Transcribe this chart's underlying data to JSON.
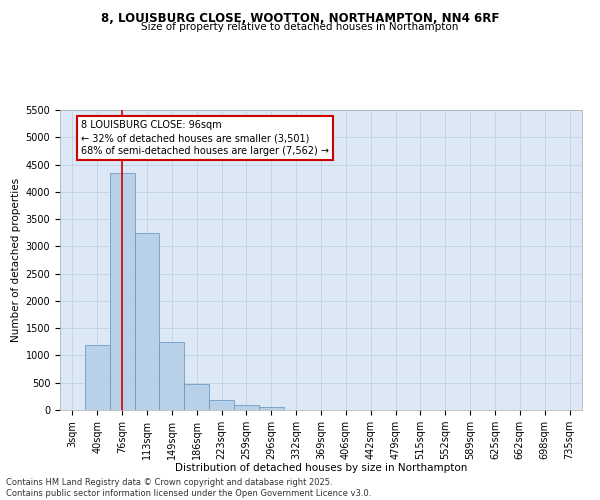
{
  "title_line1": "8, LOUISBURG CLOSE, WOOTTON, NORTHAMPTON, NN4 6RF",
  "title_line2": "Size of property relative to detached houses in Northampton",
  "xlabel": "Distribution of detached houses by size in Northampton",
  "ylabel": "Number of detached properties",
  "footer_line1": "Contains HM Land Registry data © Crown copyright and database right 2025.",
  "footer_line2": "Contains public sector information licensed under the Open Government Licence v3.0.",
  "bar_labels": [
    "3sqm",
    "40sqm",
    "76sqm",
    "113sqm",
    "149sqm",
    "186sqm",
    "223sqm",
    "259sqm",
    "296sqm",
    "332sqm",
    "369sqm",
    "406sqm",
    "442sqm",
    "479sqm",
    "515sqm",
    "552sqm",
    "589sqm",
    "625sqm",
    "662sqm",
    "698sqm",
    "735sqm"
  ],
  "bar_values": [
    0,
    1200,
    4350,
    3250,
    1250,
    480,
    190,
    100,
    50,
    0,
    0,
    0,
    0,
    0,
    0,
    0,
    0,
    0,
    0,
    0,
    0
  ],
  "bar_color": "#b8d0e8",
  "bar_edge_color": "#6090b8",
  "background_color": "#dce8f5",
  "grid_color": "#b8cfe0",
  "vline_x_index": 2,
  "vline_color": "#cc0000",
  "annotation_text_line1": "8 LOUISBURG CLOSE: 96sqm",
  "annotation_text_line2": "← 32% of detached houses are smaller (3,501)",
  "annotation_text_line3": "68% of semi-detached houses are larger (7,562) →",
  "ylim": [
    0,
    5500
  ],
  "yticks": [
    0,
    500,
    1000,
    1500,
    2000,
    2500,
    3000,
    3500,
    4000,
    4500,
    5000,
    5500
  ],
  "title_fontsize": 8.5,
  "subtitle_fontsize": 7.5,
  "axis_label_fontsize": 7.5,
  "tick_fontsize": 7,
  "footer_fontsize": 6,
  "annot_fontsize": 7
}
